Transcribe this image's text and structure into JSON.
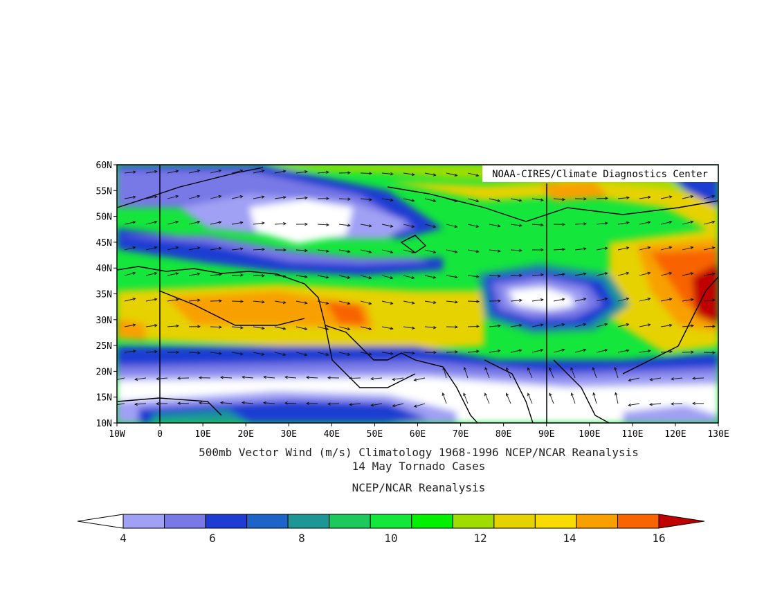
{
  "credit": "NOAA-CIRES/Climate Diagnostics Center",
  "titles": {
    "line1": "500mb Vector Wind (m/s) Climatology 1968-1996 NCEP/NCAR Reanalysis",
    "line2": "14 May Tornado Cases",
    "line3": "NCEP/NCAR Reanalysis"
  },
  "axes": {
    "lat_labels": [
      "10N",
      "15N",
      "20N",
      "25N",
      "30N",
      "35N",
      "40N",
      "45N",
      "50N",
      "55N",
      "60N"
    ],
    "lon_labels": [
      "10W",
      "0",
      "10E",
      "20E",
      "30E",
      "40E",
      "50E",
      "60E",
      "70E",
      "80E",
      "90E",
      "100E",
      "110E",
      "120E",
      "130E"
    ]
  },
  "colorbar": {
    "levels": [
      4,
      5,
      6,
      7,
      8,
      9,
      10,
      11,
      12,
      13,
      14,
      15,
      16
    ],
    "tick_labels": [
      "4",
      "6",
      "8",
      "10",
      "12",
      "14",
      "16"
    ],
    "colors": [
      "#ffffff",
      "#a0a0f4",
      "#7878e6",
      "#1e3cd2",
      "#1e64c8",
      "#1e9696",
      "#1ec85a",
      "#14e63c",
      "#00f000",
      "#a0dc00",
      "#e6d200",
      "#f8dc00",
      "#f8a000",
      "#f86400",
      "#c00000"
    ]
  }
}
